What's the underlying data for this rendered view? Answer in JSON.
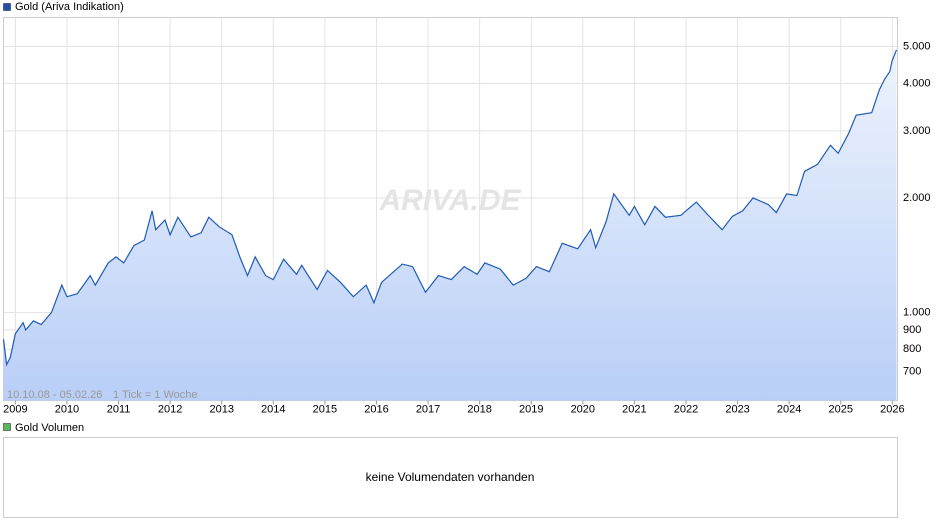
{
  "chart_data": {
    "type": "line",
    "title": "Gold (Ariva Indikation)",
    "date_range": "10.10.08 - 05.02.26",
    "tick_note": "1 Tick = 1 Woche",
    "watermark": "ARIVA.DE",
    "log_scale": true,
    "grid": true,
    "legend": "top-left",
    "x": [
      2008.77,
      2008.83,
      2008.9,
      2009.0,
      2009.15,
      2009.2,
      2009.35,
      2009.5,
      2009.7,
      2009.9,
      2010.0,
      2010.2,
      2010.45,
      2010.55,
      2010.8,
      2010.95,
      2011.1,
      2011.3,
      2011.5,
      2011.65,
      2011.72,
      2011.9,
      2012.0,
      2012.15,
      2012.4,
      2012.6,
      2012.75,
      2012.95,
      2013.2,
      2013.35,
      2013.5,
      2013.65,
      2013.85,
      2014.0,
      2014.2,
      2014.45,
      2014.55,
      2014.85,
      2015.05,
      2015.3,
      2015.55,
      2015.8,
      2015.95,
      2016.1,
      2016.5,
      2016.7,
      2016.95,
      2017.2,
      2017.45,
      2017.7,
      2017.95,
      2018.1,
      2018.4,
      2018.65,
      2018.9,
      2019.1,
      2019.35,
      2019.6,
      2019.9,
      2020.15,
      2020.25,
      2020.45,
      2020.6,
      2020.9,
      2021.0,
      2021.2,
      2021.4,
      2021.6,
      2021.9,
      2022.2,
      2022.4,
      2022.7,
      2022.9,
      2023.1,
      2023.3,
      2023.6,
      2023.75,
      2023.95,
      2024.15,
      2024.3,
      2024.55,
      2024.8,
      2024.95,
      2025.15,
      2025.3,
      2025.6,
      2025.75,
      2025.85,
      2025.95,
      2026.0,
      2026.08
    ],
    "series": [
      {
        "name": "Gold (Ariva Indikation)",
        "color": "#1f5bb5",
        "values": [
          850,
          730,
          760,
          880,
          940,
          900,
          950,
          930,
          1000,
          1180,
          1100,
          1120,
          1250,
          1180,
          1350,
          1400,
          1350,
          1500,
          1550,
          1850,
          1650,
          1750,
          1600,
          1780,
          1580,
          1620,
          1780,
          1680,
          1600,
          1400,
          1250,
          1400,
          1250,
          1220,
          1380,
          1260,
          1330,
          1150,
          1290,
          1200,
          1100,
          1180,
          1060,
          1200,
          1340,
          1320,
          1130,
          1250,
          1220,
          1320,
          1260,
          1350,
          1300,
          1180,
          1230,
          1320,
          1280,
          1520,
          1470,
          1650,
          1480,
          1730,
          2050,
          1800,
          1900,
          1700,
          1900,
          1780,
          1800,
          1950,
          1820,
          1650,
          1790,
          1850,
          2000,
          1920,
          1830,
          2050,
          2030,
          2350,
          2450,
          2750,
          2620,
          2950,
          3300,
          3350,
          3850,
          4100,
          4300,
          4600,
          4900
        ]
      }
    ],
    "xlim": [
      2008.77,
      2026.1
    ],
    "xticks": [
      2009,
      2010,
      2011,
      2012,
      2013,
      2014,
      2015,
      2016,
      2017,
      2018,
      2019,
      2020,
      2021,
      2022,
      2023,
      2024,
      2025,
      2026
    ],
    "ylim": [
      587,
      5960
    ],
    "yticks": [
      700,
      800,
      900,
      {
        "value": 1000,
        "label": "1.000"
      },
      {
        "value": 2000,
        "label": "2.000"
      },
      {
        "value": 3000,
        "label": "3.000"
      },
      {
        "value": 4000,
        "label": "4.000"
      },
      {
        "value": 5000,
        "label": "5.000"
      }
    ]
  },
  "volume_panel": {
    "title": "Gold Volumen",
    "message": "keine Volumendaten vorhanden"
  }
}
